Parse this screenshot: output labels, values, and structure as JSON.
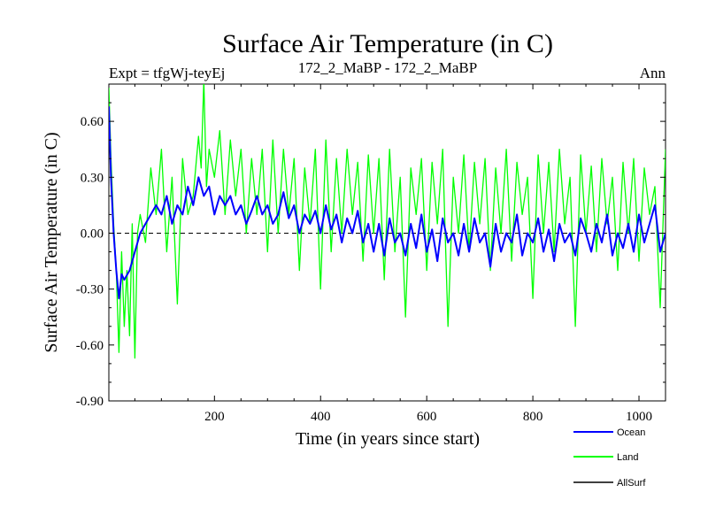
{
  "header": {
    "title": "Surface Air Temperature (in C)",
    "expt": "Expt = tfgWj-teyEj",
    "comparison": "172_2_MaBP - 172_2_MaBP",
    "season": "Ann"
  },
  "colors": {
    "ocean": "#0000ff",
    "land": "#00ff00",
    "allsurf": "#000000",
    "axis": "#000000",
    "background": "#ffffff"
  },
  "chart_data": {
    "type": "line",
    "title": "Surface Air Temperature (in C)",
    "xlabel": "Time (in years since start)",
    "ylabel": "Surface Air Temperature (in C)",
    "xlim": [
      1,
      1050
    ],
    "ylim": [
      -0.9,
      0.8
    ],
    "xticks": [
      200,
      400,
      600,
      800,
      1000
    ],
    "xtick_labels": [
      "200",
      "400",
      "600",
      "800",
      "1000"
    ],
    "yticks": [
      -0.9,
      -0.6,
      -0.3,
      0.0,
      0.3,
      0.6
    ],
    "ytick_labels": [
      "-0.90",
      "-0.60",
      "-0.30",
      "0.00",
      "0.30",
      "0.60"
    ],
    "zero_line": true,
    "legend_position": "bottom-right",
    "series": [
      {
        "name": "Land",
        "color": "#00ff00",
        "x": [
          1,
          5,
          10,
          15,
          20,
          25,
          30,
          35,
          40,
          45,
          50,
          55,
          60,
          70,
          80,
          90,
          100,
          110,
          120,
          130,
          140,
          150,
          160,
          170,
          175,
          180,
          185,
          190,
          200,
          210,
          220,
          230,
          240,
          250,
          260,
          270,
          280,
          290,
          300,
          310,
          320,
          330,
          340,
          350,
          360,
          370,
          380,
          390,
          400,
          410,
          420,
          430,
          440,
          450,
          460,
          470,
          480,
          490,
          500,
          510,
          520,
          530,
          540,
          550,
          560,
          570,
          580,
          590,
          600,
          610,
          620,
          630,
          640,
          650,
          660,
          670,
          680,
          690,
          700,
          710,
          720,
          730,
          740,
          750,
          760,
          770,
          780,
          790,
          800,
          810,
          820,
          830,
          840,
          850,
          860,
          870,
          880,
          890,
          900,
          910,
          920,
          930,
          940,
          950,
          960,
          970,
          980,
          990,
          1000,
          1010,
          1020,
          1030,
          1040,
          1050
        ],
        "y": [
          0.78,
          0.4,
          0.05,
          -0.2,
          -0.64,
          -0.1,
          -0.5,
          -0.2,
          -0.55,
          0.05,
          -0.67,
          0.0,
          0.1,
          -0.05,
          0.35,
          0.1,
          0.45,
          -0.1,
          0.3,
          -0.38,
          0.4,
          0.1,
          0.2,
          0.52,
          0.35,
          0.82,
          0.25,
          0.45,
          0.3,
          0.55,
          0.1,
          0.5,
          0.2,
          0.45,
          0.0,
          0.4,
          0.1,
          0.45,
          -0.1,
          0.5,
          0.0,
          0.45,
          0.1,
          0.4,
          -0.2,
          0.35,
          0.05,
          0.45,
          -0.3,
          0.5,
          -0.1,
          0.4,
          0.0,
          0.45,
          0.1,
          0.38,
          -0.15,
          0.42,
          0.0,
          0.4,
          -0.25,
          0.45,
          -0.1,
          0.3,
          -0.45,
          0.35,
          0.1,
          0.4,
          -0.2,
          0.38,
          0.05,
          0.45,
          -0.5,
          0.3,
          0.0,
          0.42,
          -0.1,
          0.38,
          0.05,
          0.4,
          -0.2,
          0.35,
          0.0,
          0.45,
          -0.15,
          0.38,
          0.1,
          0.3,
          -0.35,
          0.42,
          0.0,
          0.38,
          -0.1,
          0.45,
          0.05,
          0.3,
          -0.5,
          0.42,
          0.0,
          0.36,
          -0.1,
          0.4,
          0.05,
          0.3,
          -0.2,
          0.38,
          0.0,
          0.4,
          -0.15,
          0.35,
          0.1,
          0.25,
          -0.4,
          0.45
        ]
      },
      {
        "name": "Ocean",
        "color": "#0000ff",
        "x": [
          1,
          5,
          10,
          15,
          20,
          25,
          30,
          40,
          50,
          60,
          70,
          80,
          90,
          100,
          110,
          120,
          130,
          140,
          150,
          160,
          170,
          180,
          190,
          200,
          210,
          220,
          230,
          240,
          250,
          260,
          270,
          280,
          290,
          300,
          310,
          320,
          330,
          340,
          350,
          360,
          370,
          380,
          390,
          400,
          410,
          420,
          430,
          440,
          450,
          460,
          470,
          480,
          490,
          500,
          510,
          520,
          530,
          540,
          550,
          560,
          570,
          580,
          590,
          600,
          610,
          620,
          630,
          640,
          650,
          660,
          670,
          680,
          690,
          700,
          710,
          720,
          730,
          740,
          750,
          760,
          770,
          780,
          790,
          800,
          810,
          820,
          830,
          840,
          850,
          860,
          870,
          880,
          890,
          900,
          910,
          920,
          930,
          940,
          950,
          960,
          970,
          980,
          990,
          1000,
          1010,
          1020,
          1030,
          1040,
          1050
        ],
        "y": [
          0.68,
          0.3,
          0.0,
          -0.2,
          -0.35,
          -0.22,
          -0.25,
          -0.2,
          -0.1,
          0.0,
          0.05,
          0.1,
          0.15,
          0.1,
          0.2,
          0.05,
          0.15,
          0.1,
          0.25,
          0.15,
          0.3,
          0.2,
          0.25,
          0.1,
          0.2,
          0.15,
          0.2,
          0.1,
          0.15,
          0.05,
          0.12,
          0.2,
          0.1,
          0.15,
          0.05,
          0.1,
          0.22,
          0.08,
          0.15,
          0.0,
          0.1,
          0.05,
          0.12,
          0.0,
          0.15,
          0.02,
          0.1,
          -0.05,
          0.08,
          0.0,
          0.12,
          -0.05,
          0.05,
          -0.1,
          0.05,
          -0.12,
          0.08,
          -0.05,
          0.0,
          -0.12,
          0.05,
          -0.08,
          0.1,
          -0.1,
          0.02,
          -0.15,
          0.08,
          -0.05,
          0.0,
          -0.12,
          0.05,
          -0.1,
          0.08,
          -0.05,
          0.0,
          -0.18,
          0.05,
          -0.1,
          0.0,
          -0.05,
          0.1,
          -0.12,
          0.0,
          -0.05,
          0.08,
          -0.1,
          0.02,
          -0.15,
          0.05,
          -0.05,
          0.0,
          -0.12,
          0.08,
          0.0,
          -0.1,
          0.05,
          -0.05,
          0.1,
          -0.12,
          0.0,
          -0.08,
          0.05,
          -0.1,
          0.1,
          -0.05,
          0.05,
          0.15,
          -0.1,
          0.0
        ]
      },
      {
        "name": "AllSurf",
        "color": "#000000",
        "x": [],
        "y": []
      }
    ],
    "legend": [
      {
        "label": "Ocean",
        "color": "#0000ff"
      },
      {
        "label": "Land",
        "color": "#00ff00"
      },
      {
        "label": "AllSurf",
        "color": "#000000"
      }
    ]
  }
}
